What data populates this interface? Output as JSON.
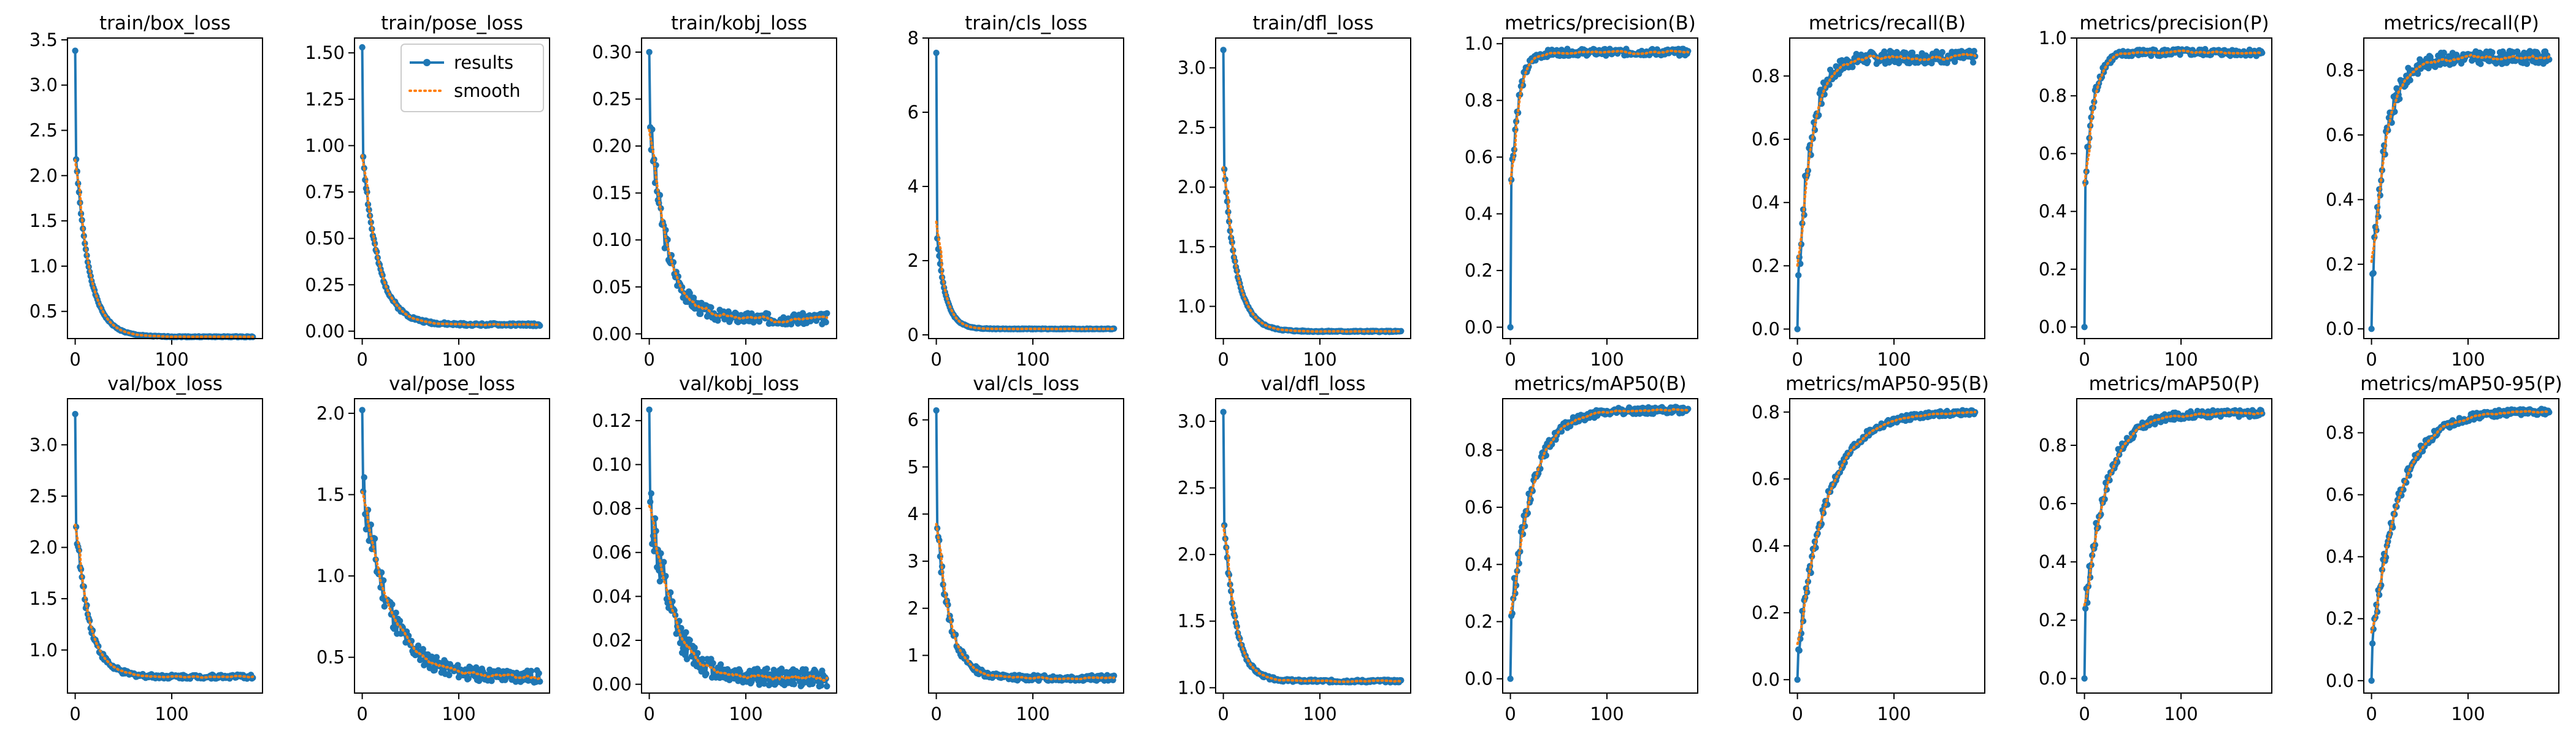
{
  "figure": {
    "n_points": 185,
    "series_colors": {
      "results": "#1f77b4",
      "smooth": "#ff7f0e"
    },
    "legend": {
      "items": [
        "results",
        "smooth"
      ],
      "panel": "train/pose_loss",
      "placement": "upper right"
    },
    "xticks": [
      0,
      100
    ],
    "xlim": [
      -8,
      194
    ]
  },
  "chart_data": [
    {
      "type": "line",
      "title": "train/box_loss",
      "ylim": [
        0.2,
        3.52
      ],
      "yticks": [
        "0.5",
        "1.0",
        "1.5",
        "2.0",
        "2.5",
        "3.0",
        "3.5"
      ],
      "ytick_values": [
        0.5,
        1.0,
        1.5,
        2.0,
        2.5,
        3.0,
        3.5
      ],
      "curve": {
        "shape": "decay",
        "start": 3.38,
        "second": 2.18,
        "end": 0.22,
        "rate": 14,
        "noise": 0.005,
        "seed": 1
      }
    },
    {
      "type": "line",
      "title": "train/pose_loss",
      "ylim": [
        -0.04,
        1.58
      ],
      "yticks": [
        "0.00",
        "0.25",
        "0.50",
        "0.75",
        "1.00",
        "1.25",
        "1.50"
      ],
      "ytick_values": [
        0,
        0.25,
        0.5,
        0.75,
        1.0,
        1.25,
        1.5
      ],
      "curve": {
        "shape": "decay",
        "start": 1.53,
        "second": 0.94,
        "end": 0.035,
        "rate": 16,
        "noise": 0.007,
        "seed": 2
      }
    },
    {
      "type": "line",
      "title": "train/kobj_loss",
      "ylim": [
        -0.005,
        0.315
      ],
      "yticks": [
        "0.00",
        "0.05",
        "0.10",
        "0.15",
        "0.20",
        "0.25",
        "0.30"
      ],
      "ytick_values": [
        0,
        0.05,
        0.1,
        0.15,
        0.2,
        0.25,
        0.3
      ],
      "curve": {
        "shape": "decay",
        "start": 0.3,
        "second": 0.22,
        "end": 0.016,
        "rate": 18,
        "noise": 0.006,
        "seed": 3
      }
    },
    {
      "type": "line",
      "title": "train/cls_loss",
      "ylim": [
        -0.1,
        8.0
      ],
      "yticks": [
        "0",
        "2",
        "4",
        "6",
        "8"
      ],
      "ytick_values": [
        0,
        2,
        4,
        6,
        8
      ],
      "curve": {
        "shape": "decay",
        "start": 7.6,
        "second": 2.6,
        "end": 0.16,
        "rate": 9,
        "noise": 0.01,
        "seed": 4
      }
    },
    {
      "type": "line",
      "title": "train/dfl_loss",
      "ylim": [
        0.73,
        3.25
      ],
      "yticks": [
        "1.0",
        "1.5",
        "2.0",
        "2.5",
        "3.0"
      ],
      "ytick_values": [
        1.0,
        1.5,
        2.0,
        2.5,
        3.0
      ],
      "curve": {
        "shape": "decay",
        "start": 3.15,
        "second": 2.15,
        "end": 0.79,
        "rate": 13,
        "noise": 0.005,
        "seed": 5
      }
    },
    {
      "type": "line",
      "title": "metrics/precision(B)",
      "ylim": [
        -0.04,
        1.02
      ],
      "yticks": [
        "0.0",
        "0.2",
        "0.4",
        "0.6",
        "0.8",
        "1.0"
      ],
      "ytick_values": [
        0,
        0.2,
        0.4,
        0.6,
        0.8,
        1.0
      ],
      "curve": {
        "shape": "grow",
        "start": 0.0,
        "second": 0.52,
        "end": 0.97,
        "rate": 8,
        "noise": 0.012,
        "seed": 6
      }
    },
    {
      "type": "line",
      "title": "metrics/recall(B)",
      "ylim": [
        -0.03,
        0.92
      ],
      "yticks": [
        "0.0",
        "0.2",
        "0.4",
        "0.6",
        "0.8"
      ],
      "ytick_values": [
        0,
        0.2,
        0.4,
        0.6,
        0.8
      ],
      "curve": {
        "shape": "grow",
        "start": 0.0,
        "second": 0.17,
        "end": 0.86,
        "rate": 14,
        "noise": 0.02,
        "seed": 7
      }
    },
    {
      "type": "line",
      "title": "metrics/precision(P)",
      "ylim": [
        -0.04,
        1.0
      ],
      "yticks": [
        "0.0",
        "0.2",
        "0.4",
        "0.6",
        "0.8",
        "1.0"
      ],
      "ytick_values": [
        0,
        0.2,
        0.4,
        0.6,
        0.8,
        1.0
      ],
      "curve": {
        "shape": "grow",
        "start": 0.0,
        "second": 0.5,
        "end": 0.95,
        "rate": 9,
        "noise": 0.012,
        "seed": 8
      }
    },
    {
      "type": "line",
      "title": "metrics/recall(P)",
      "ylim": [
        -0.03,
        0.9
      ],
      "yticks": [
        "0.0",
        "0.2",
        "0.4",
        "0.6",
        "0.8"
      ],
      "ytick_values": [
        0,
        0.2,
        0.4,
        0.6,
        0.8
      ],
      "curve": {
        "shape": "grow",
        "start": 0.0,
        "second": 0.17,
        "end": 0.84,
        "rate": 15,
        "noise": 0.02,
        "seed": 9
      }
    },
    {
      "type": "line",
      "title": "val/box_loss",
      "ylim": [
        0.58,
        3.45
      ],
      "yticks": [
        "1.0",
        "1.5",
        "2.0",
        "2.5",
        "3.0"
      ],
      "ytick_values": [
        1.0,
        1.5,
        2.0,
        2.5,
        3.0
      ],
      "curve": {
        "shape": "decay",
        "start": 3.3,
        "second": 2.2,
        "end": 0.74,
        "rate": 14,
        "noise": 0.02,
        "seed": 10
      }
    },
    {
      "type": "line",
      "title": "val/pose_loss",
      "ylim": [
        0.28,
        2.09
      ],
      "yticks": [
        "0.5",
        "1.0",
        "1.5",
        "2.0"
      ],
      "ytick_values": [
        0.5,
        1.0,
        1.5,
        2.0
      ],
      "curve": {
        "shape": "decay",
        "start": 2.02,
        "second": 1.52,
        "end": 0.38,
        "rate": 28,
        "noise": 0.04,
        "seed": 11
      }
    },
    {
      "type": "line",
      "title": "val/kobj_loss",
      "ylim": [
        -0.004,
        0.13
      ],
      "yticks": [
        "0.00",
        "0.02",
        "0.04",
        "0.06",
        "0.08",
        "0.10",
        "0.12"
      ],
      "ytick_values": [
        0,
        0.02,
        0.04,
        0.06,
        0.08,
        0.1,
        0.12
      ],
      "curve": {
        "shape": "decay",
        "start": 0.125,
        "second": 0.083,
        "end": 0.003,
        "rate": 22,
        "noise": 0.004,
        "seed": 12
      }
    },
    {
      "type": "line",
      "title": "val/cls_loss",
      "ylim": [
        0.2,
        6.45
      ],
      "yticks": [
        "1",
        "2",
        "3",
        "4",
        "5",
        "6"
      ],
      "ytick_values": [
        1,
        2,
        3,
        4,
        5,
        6
      ],
      "curve": {
        "shape": "decay",
        "start": 6.2,
        "second": 3.7,
        "end": 0.52,
        "rate": 14,
        "noise": 0.06,
        "seed": 13
      }
    },
    {
      "type": "line",
      "title": "val/dfl_loss",
      "ylim": [
        0.96,
        3.17
      ],
      "yticks": [
        "1.0",
        "1.5",
        "2.0",
        "2.5",
        "3.0"
      ],
      "ytick_values": [
        1.0,
        1.5,
        2.0,
        2.5,
        3.0
      ],
      "curve": {
        "shape": "decay",
        "start": 3.07,
        "second": 2.22,
        "end": 1.05,
        "rate": 12,
        "noise": 0.01,
        "seed": 14
      }
    },
    {
      "type": "line",
      "title": "metrics/mAP50(B)",
      "ylim": [
        -0.05,
        0.98
      ],
      "yticks": [
        "0.0",
        "0.2",
        "0.4",
        "0.6",
        "0.8"
      ],
      "ytick_values": [
        0,
        0.2,
        0.4,
        0.6,
        0.8
      ],
      "curve": {
        "shape": "grow",
        "start": 0.0,
        "second": 0.22,
        "end": 0.94,
        "rate": 22,
        "noise": 0.012,
        "seed": 15
      }
    },
    {
      "type": "line",
      "title": "metrics/mAP50-95(B)",
      "ylim": [
        -0.04,
        0.84
      ],
      "yticks": [
        "0.0",
        "0.2",
        "0.4",
        "0.6",
        "0.8"
      ],
      "ytick_values": [
        0,
        0.2,
        0.4,
        0.6,
        0.8
      ],
      "curve": {
        "shape": "grow",
        "start": 0.0,
        "second": 0.09,
        "end": 0.8,
        "rate": 30,
        "noise": 0.008,
        "seed": 16
      }
    },
    {
      "type": "line",
      "title": "metrics/mAP50(P)",
      "ylim": [
        -0.05,
        0.96
      ],
      "yticks": [
        "0.0",
        "0.2",
        "0.4",
        "0.6",
        "0.8"
      ],
      "ytick_values": [
        0,
        0.2,
        0.4,
        0.6,
        0.8
      ],
      "curve": {
        "shape": "grow",
        "start": 0.0,
        "second": 0.24,
        "end": 0.91,
        "rate": 22,
        "noise": 0.012,
        "seed": 17
      }
    },
    {
      "type": "line",
      "title": "metrics/mAP50-95(P)",
      "ylim": [
        -0.04,
        0.91
      ],
      "yticks": [
        "0.0",
        "0.2",
        "0.4",
        "0.6",
        "0.8"
      ],
      "ytick_values": [
        0,
        0.2,
        0.4,
        0.6,
        0.8
      ],
      "curve": {
        "shape": "grow",
        "start": 0.0,
        "second": 0.12,
        "end": 0.87,
        "rate": 28,
        "noise": 0.01,
        "seed": 18
      }
    }
  ]
}
